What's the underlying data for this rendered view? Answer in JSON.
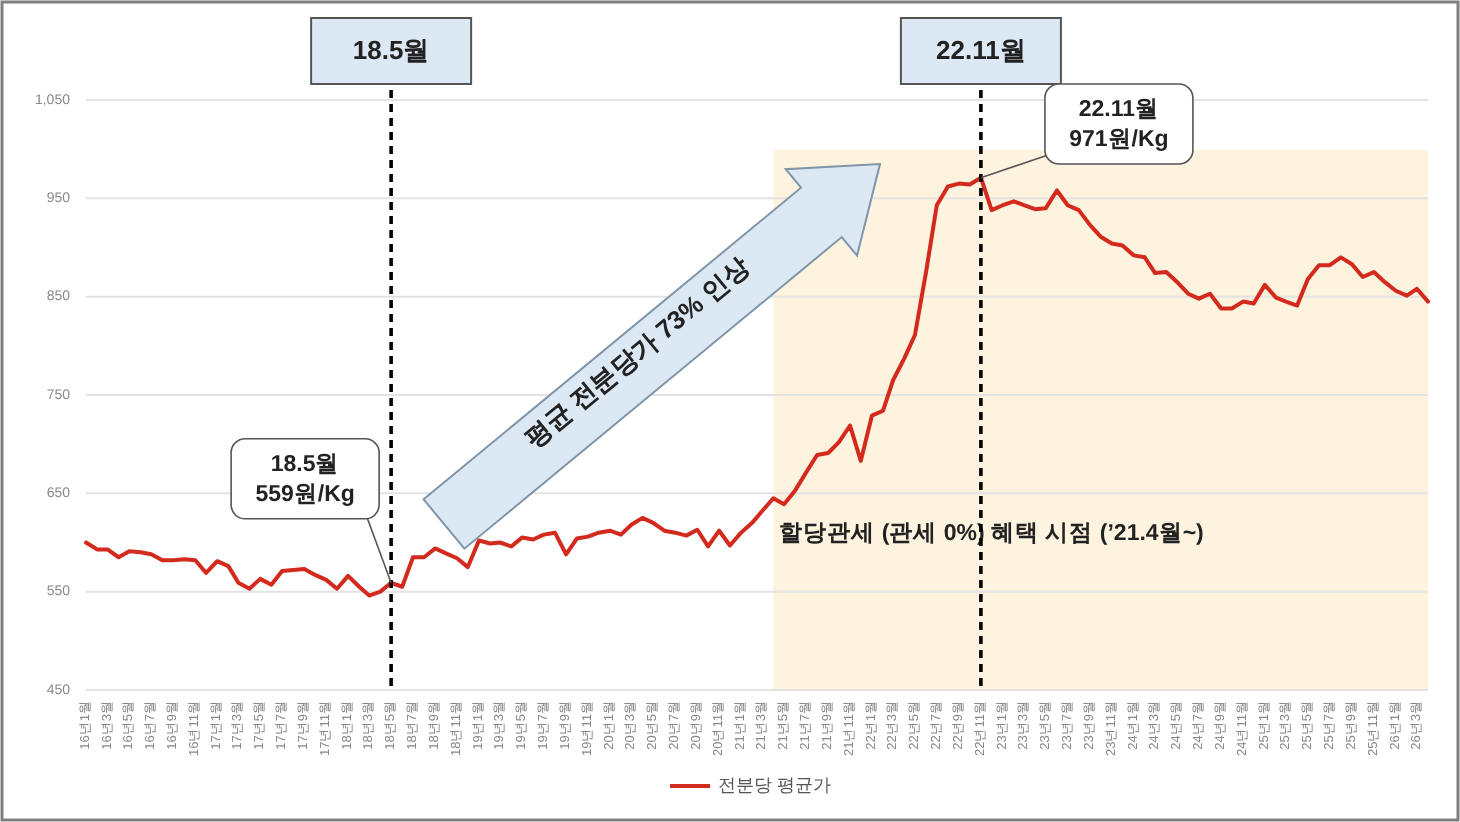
{
  "chart_data": {
    "type": "line",
    "x": [
      "2016-01",
      "2016-02",
      "2016-03",
      "2016-04",
      "2016-05",
      "2016-06",
      "2016-07",
      "2016-08",
      "2016-09",
      "2016-10",
      "2016-11",
      "2016-12",
      "2017-01",
      "2017-02",
      "2017-03",
      "2017-04",
      "2017-05",
      "2017-06",
      "2017-07",
      "2017-08",
      "2017-09",
      "2017-10",
      "2017-11",
      "2017-12",
      "2018-01",
      "2018-02",
      "2018-03",
      "2018-04",
      "2018-05",
      "2018-06",
      "2018-07",
      "2018-08",
      "2018-09",
      "2018-10",
      "2018-11",
      "2018-12",
      "2019-01",
      "2019-02",
      "2019-03",
      "2019-04",
      "2019-05",
      "2019-06",
      "2019-07",
      "2019-08",
      "2019-09",
      "2019-10",
      "2019-11",
      "2019-12",
      "2020-01",
      "2020-02",
      "2020-03",
      "2020-04",
      "2020-05",
      "2020-06",
      "2020-07",
      "2020-08",
      "2020-09",
      "2020-10",
      "2020-11",
      "2020-12",
      "2021-01",
      "2021-02",
      "2021-03",
      "2021-04",
      "2021-05",
      "2021-06",
      "2021-07",
      "2021-08",
      "2021-09",
      "2021-10",
      "2021-11",
      "2021-12",
      "2022-01",
      "2022-02",
      "2022-03",
      "2022-04",
      "2022-05",
      "2022-06",
      "2022-07",
      "2022-08",
      "2022-09",
      "2022-10",
      "2022-11",
      "2022-12",
      "2023-01",
      "2023-02",
      "2023-03",
      "2023-04",
      "2023-05",
      "2023-06",
      "2023-07",
      "2023-08",
      "2023-09",
      "2023-10",
      "2023-11",
      "2023-12",
      "2024-01",
      "2024-02",
      "2024-03",
      "2024-04",
      "2024-05",
      "2024-06",
      "2024-07",
      "2024-08",
      "2024-09",
      "2024-10",
      "2024-11",
      "2024-12",
      "2025-01",
      "2025-02",
      "2025-03",
      "2025-04",
      "2025-05",
      "2025-06",
      "2025-07",
      "2025-08",
      "2025-09",
      "2025-10",
      "2025-11",
      "2025-12",
      "2026-01",
      "2026-02",
      "2026-03",
      "2026-04"
    ],
    "series": [
      {
        "name": "전분당 평균가",
        "color": "#d42a1e",
        "values": [
          600,
          593,
          593,
          585,
          591,
          590,
          588,
          582,
          582,
          583,
          582,
          569,
          581,
          576,
          559,
          553,
          563,
          557,
          571,
          572,
          573,
          567,
          562,
          553,
          566,
          555,
          546,
          550,
          559,
          555,
          585,
          585,
          594,
          589,
          584,
          575,
          602,
          599,
          600,
          596,
          605,
          603,
          608,
          610,
          588,
          604,
          606,
          610,
          612,
          608,
          618,
          625,
          620,
          612,
          610,
          607,
          613,
          596,
          612,
          597,
          610,
          620,
          632,
          645,
          639,
          653,
          671,
          689,
          691,
          702,
          719,
          683,
          729,
          734,
          765,
          787,
          811,
          875,
          943,
          962,
          965,
          964,
          971,
          938,
          943,
          947,
          943,
          939,
          940,
          958,
          943,
          938,
          923,
          911,
          904,
          902,
          892,
          890,
          874,
          875,
          865,
          853,
          848,
          853,
          838,
          838,
          845,
          843,
          862,
          849,
          845,
          841,
          868,
          882,
          882,
          890,
          883,
          870,
          875,
          865,
          856,
          851,
          858,
          845
        ]
      }
    ],
    "xlim": [
      "2016-01",
      "2026-04"
    ],
    "xticks": [
      {
        "value": "2016-01",
        "label": "16년1월"
      },
      {
        "value": "2016-03",
        "label": "16년3월"
      },
      {
        "value": "2016-05",
        "label": "16년5월"
      },
      {
        "value": "2016-07",
        "label": "16년7월"
      },
      {
        "value": "2016-09",
        "label": "16년9월"
      },
      {
        "value": "2016-11",
        "label": "16년11월"
      },
      {
        "value": "2017-01",
        "label": "17년1월"
      },
      {
        "value": "2017-03",
        "label": "17년3월"
      },
      {
        "value": "2017-05",
        "label": "17년5월"
      },
      {
        "value": "2017-07",
        "label": "17년7월"
      },
      {
        "value": "2017-09",
        "label": "17년9월"
      },
      {
        "value": "2017-11",
        "label": "17년11월"
      },
      {
        "value": "2018-01",
        "label": "18년1월"
      },
      {
        "value": "2018-03",
        "label": "18년3월"
      },
      {
        "value": "2018-05",
        "label": "18년5월"
      },
      {
        "value": "2018-07",
        "label": "18년7월"
      },
      {
        "value": "2018-09",
        "label": "18년9월"
      },
      {
        "value": "2018-11",
        "label": "18년11월"
      },
      {
        "value": "2019-01",
        "label": "19년1월"
      },
      {
        "value": "2019-03",
        "label": "19년3월"
      },
      {
        "value": "2019-05",
        "label": "19년5월"
      },
      {
        "value": "2019-07",
        "label": "19년7월"
      },
      {
        "value": "2019-09",
        "label": "19년9월"
      },
      {
        "value": "2019-11",
        "label": "19년11월"
      },
      {
        "value": "2020-01",
        "label": "20년1월"
      },
      {
        "value": "2020-03",
        "label": "20년3월"
      },
      {
        "value": "2020-05",
        "label": "20년5월"
      },
      {
        "value": "2020-07",
        "label": "20년7월"
      },
      {
        "value": "2020-09",
        "label": "20년9월"
      },
      {
        "value": "2020-11",
        "label": "20년11월"
      },
      {
        "value": "2021-01",
        "label": "21년1월"
      },
      {
        "value": "2021-03",
        "label": "21년3월"
      },
      {
        "value": "2021-05",
        "label": "21년5월"
      },
      {
        "value": "2021-07",
        "label": "21년7월"
      },
      {
        "value": "2021-09",
        "label": "21년9월"
      },
      {
        "value": "2021-11",
        "label": "21년11월"
      },
      {
        "value": "2022-01",
        "label": "22년1월"
      },
      {
        "value": "2022-03",
        "label": "22년3월"
      },
      {
        "value": "2022-05",
        "label": "22년5월"
      },
      {
        "value": "2022-07",
        "label": "22년7월"
      },
      {
        "value": "2022-09",
        "label": "22년9월"
      },
      {
        "value": "2022-11",
        "label": "22년11월"
      },
      {
        "value": "2023-01",
        "label": "23년1월"
      },
      {
        "value": "2023-03",
        "label": "23년3월"
      },
      {
        "value": "2023-05",
        "label": "23년5월"
      },
      {
        "value": "2023-07",
        "label": "23년7월"
      },
      {
        "value": "2023-09",
        "label": "23년9월"
      },
      {
        "value": "2023-11",
        "label": "23년11월"
      },
      {
        "value": "2024-01",
        "label": "24년1월"
      },
      {
        "value": "2024-03",
        "label": "24년3월"
      },
      {
        "value": "2024-05",
        "label": "24년5월"
      },
      {
        "value": "2024-07",
        "label": "24년7월"
      },
      {
        "value": "2024-09",
        "label": "24년9월"
      },
      {
        "value": "2024-11",
        "label": "24년11월"
      },
      {
        "value": "2025-01",
        "label": "25년1월"
      },
      {
        "value": "2025-03",
        "label": "25년3월"
      },
      {
        "value": "2025-05",
        "label": "25년5월"
      },
      {
        "value": "2025-07",
        "label": "25년7월"
      },
      {
        "value": "2025-09",
        "label": "25년9월"
      },
      {
        "value": "2025-11",
        "label": "25년11월"
      },
      {
        "value": "2026-01",
        "label": "26년1월"
      },
      {
        "value": "2026-03",
        "label": "26년3월"
      }
    ],
    "ylim": [
      450,
      1050
    ],
    "yticks": [
      450,
      550,
      650,
      750,
      850,
      950,
      {
        "value": 1050,
        "label": "1,050"
      }
    ],
    "grid": "y",
    "legend": "bottom",
    "marker": "none",
    "line_style": "solid",
    "ref_lines": [
      {
        "axis": "x",
        "value": "2018-05",
        "label": "18.5월",
        "color": "#000000",
        "line_style": "dashed"
      },
      {
        "axis": "x",
        "value": "2022-11",
        "label": "22.11월",
        "color": "#000000",
        "line_style": "dashed"
      }
    ],
    "bands": [
      {
        "axis": "x",
        "from": "2021-04",
        "to": "2026-04",
        "label": "할당관세 (관세 0%) 혜택 시점 (’21.4월~)",
        "color": "#fdf3df"
      }
    ],
    "annotations": [
      {
        "text": "18.5월\n559원/Kg",
        "x": "2018-05",
        "y": 559
      },
      {
        "text": "22.11월\n971원/Kg",
        "x": "2022-11",
        "y": 971
      },
      "평균 전분당가 73% 인상"
    ]
  }
}
